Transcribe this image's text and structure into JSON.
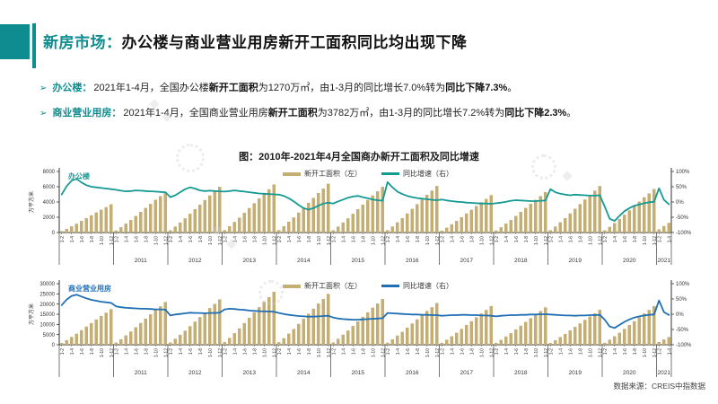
{
  "header": {
    "title_prefix": "新房市场：",
    "title": "办公楼与商业营业用房新开工面积同比均出现下降"
  },
  "bullets": [
    {
      "marker": "➢",
      "label": "办公楼：",
      "text1": "2021年1-4月，全国办公楼",
      "bold1": "新开工面积",
      "text2": "为1270万㎡，由1-3月的同比增长7.0%转为",
      "bold2": "同比下降7.3%",
      "tail": "。"
    },
    {
      "marker": "➢",
      "label": "商业营业用房：",
      "text1": "2021年1-4月，全国商业营业用房",
      "bold1": "新开工面积",
      "text2": "为3782万㎡，由1-3月的同比增长7.2%转为",
      "bold2": "同比下降2.3%",
      "tail": "。"
    }
  ],
  "figure_title": "图：2010年-2021年4月全国商办新开工面积及同比增速",
  "source": "数据来源：CREIS中指数据",
  "chart_data": [
    {
      "type": "bar+line",
      "name": "办公楼",
      "name_color": "#159a93",
      "bar_color": "#c4ae73",
      "line_color": "#159a93",
      "ylabel_left": "万平方米",
      "yticks_left": [
        0,
        2000,
        4000,
        6000,
        8000
      ],
      "yticks_right": [
        "100%",
        "50%",
        "0%",
        "-50%",
        "-100%"
      ],
      "legend": [
        "新开工面积（左）",
        "同比增速（右）"
      ],
      "month_ticks": [
        "1-2",
        "1-4",
        "1-6",
        "1-8",
        "1-10",
        "1-12"
      ],
      "years": [
        {
          "label": "",
          "bars": [
            190,
            480,
            810,
            1150,
            1520,
            1890,
            2260,
            2630,
            3000,
            3330,
            3700
          ],
          "line": [
            25,
            52,
            70,
            76,
            64,
            55,
            50,
            48,
            46,
            44,
            42
          ]
        },
        {
          "label": "2011",
          "bars": [
            270,
            690,
            1170,
            1640,
            2170,
            2700,
            3230,
            3760,
            4290,
            4770,
            5300
          ],
          "line": [
            40,
            37,
            35,
            36,
            38,
            37,
            36,
            35,
            34,
            33,
            32
          ]
        },
        {
          "label": "2012",
          "bars": [
            300,
            780,
            1320,
            1860,
            2460,
            3060,
            3660,
            4260,
            4860,
            5400,
            6000
          ],
          "line": [
            16,
            22,
            32,
            42,
            48,
            44,
            38,
            36,
            37,
            36,
            35
          ]
        },
        {
          "label": "2013",
          "bars": [
            320,
            820,
            1390,
            1950,
            2580,
            3210,
            3840,
            4470,
            5100,
            5670,
            6300
          ],
          "line": [
            34,
            36,
            38,
            36,
            34,
            32,
            30,
            28,
            27,
            26,
            25
          ]
        },
        {
          "label": "2014",
          "bars": [
            320,
            830,
            1410,
            1980,
            2620,
            3260,
            3900,
            4540,
            5180,
            5760,
            6400
          ],
          "line": [
            24,
            20,
            12,
            2,
            -10,
            -20,
            -25,
            -20,
            -12,
            -5,
            -2
          ]
        },
        {
          "label": "2015",
          "bars": [
            300,
            780,
            1320,
            1860,
            2460,
            3060,
            3660,
            4260,
            4860,
            5400,
            6000
          ],
          "line": [
            -5,
            2,
            8,
            14,
            18,
            20,
            16,
            12,
            8,
            6,
            4
          ]
        },
        {
          "label": "2016",
          "bars": [
            310,
            790,
            1340,
            1890,
            2500,
            3110,
            3720,
            4330,
            4940,
            5490,
            6100
          ],
          "line": [
            65,
            48,
            34,
            26,
            20,
            16,
            13,
            11,
            9,
            7,
            6
          ]
        },
        {
          "label": "2017",
          "bars": [
            250,
            640,
            1080,
            1520,
            2010,
            2500,
            2990,
            3480,
            3970,
            4410,
            4900
          ],
          "line": [
            8,
            5,
            3,
            1,
            0,
            -2,
            -3,
            -4,
            -5,
            -5,
            -6
          ]
        },
        {
          "label": "2018",
          "bars": [
            270,
            690,
            1170,
            1640,
            2170,
            2700,
            3230,
            3760,
            4290,
            4770,
            5300
          ],
          "line": [
            -4,
            -2,
            1,
            4,
            6,
            5,
            4,
            3,
            3,
            4,
            5
          ]
        },
        {
          "label": "2019",
          "bars": [
            310,
            790,
            1340,
            1890,
            2500,
            3110,
            3720,
            4330,
            4940,
            5490,
            6100
          ],
          "line": [
            42,
            32,
            27,
            24,
            22,
            24,
            23,
            22,
            21,
            21,
            22
          ]
        },
        {
          "label": "2020",
          "bars": [
            290,
            740,
            1250,
            1770,
            2340,
            2910,
            3480,
            4050,
            4620,
            5130,
            5700
          ],
          "line": [
            -15,
            -55,
            -62,
            -45,
            -30,
            -20,
            -12,
            -8,
            -4,
            -1,
            1
          ]
        },
        {
          "label": "2021",
          "bars": [
            420,
            850,
            1270
          ],
          "line": [
            45,
            7,
            -7.3
          ]
        }
      ]
    },
    {
      "type": "bar+line",
      "name": "商业营业用房",
      "name_color": "#1f6fb5",
      "bar_color": "#c4ae73",
      "line_color": "#1f6fb5",
      "ylabel_left": "万平方米",
      "yticks_left": [
        0,
        5000,
        10000,
        15000,
        20000,
        25000,
        30000
      ],
      "yticks_right": [
        "100%",
        "50%",
        "0%",
        "-50%",
        "-100%"
      ],
      "legend": [
        "新开工面积（左）",
        "同比增速（右）"
      ],
      "month_ticks": [
        "1-2",
        "1-4",
        "1-6",
        "1-8",
        "1-10",
        "1-12"
      ],
      "years": [
        {
          "label": "",
          "bars": [
            880,
            2280,
            3850,
            5430,
            7180,
            8930,
            10680,
            12430,
            14180,
            15750,
            17500
          ],
          "line": [
            30,
            48,
            60,
            64,
            58,
            52,
            47,
            44,
            41,
            39,
            37
          ]
        },
        {
          "label": "2011",
          "bars": [
            1050,
            2730,
            4620,
            6510,
            8610,
            10710,
            12810,
            14910,
            17010,
            18900,
            21000
          ],
          "line": [
            26,
            23,
            21,
            20,
            19,
            18,
            18,
            17,
            16,
            16,
            15
          ]
        },
        {
          "label": "2012",
          "bars": [
            1120,
            2900,
            4910,
            6910,
            9140,
            11370,
            13600,
            15830,
            18060,
            20070,
            22300
          ],
          "line": [
            -4,
            -1,
            1,
            3,
            5,
            4,
            4,
            3,
            4,
            4,
            5
          ]
        },
        {
          "label": "2013",
          "bars": [
            1300,
            3380,
            5720,
            8060,
            10660,
            13260,
            15860,
            18460,
            21060,
            23400,
            26000
          ],
          "line": [
            16,
            18,
            17,
            15,
            14,
            12,
            11,
            10,
            9,
            9,
            8
          ]
        },
        {
          "label": "2014",
          "bars": [
            1250,
            3250,
            5500,
            7750,
            10250,
            12750,
            15250,
            17750,
            20250,
            22500,
            25000
          ],
          "line": [
            4,
            1,
            -2,
            -4,
            -6,
            -7,
            -8,
            -8,
            -7,
            -6,
            -5
          ]
        },
        {
          "label": "2015",
          "bars": [
            1130,
            2930,
            4950,
            6980,
            9230,
            11480,
            13730,
            15980,
            18230,
            20250,
            22500
          ],
          "line": [
            -11,
            -14,
            -16,
            -17,
            -18,
            -18,
            -17,
            -16,
            -15,
            -14,
            -13
          ]
        },
        {
          "label": "2016",
          "bars": [
            1030,
            2670,
            4510,
            6360,
            8410,
            10460,
            12510,
            14560,
            16610,
            18450,
            20500
          ],
          "line": [
            4,
            3,
            2,
            1,
            0,
            -1,
            -1,
            -2,
            -2,
            -3,
            -3
          ]
        },
        {
          "label": "2017",
          "bars": [
            950,
            2470,
            4180,
            5890,
            7790,
            9690,
            11590,
            13490,
            15390,
            17100,
            19000
          ],
          "line": [
            -5,
            -4,
            -3,
            -3,
            -2,
            -2,
            -3,
            -3,
            -4,
            -4,
            -5
          ]
        },
        {
          "label": "2018",
          "bars": [
            920,
            2390,
            4050,
            5700,
            7540,
            9380,
            11220,
            13060,
            14900,
            16560,
            18400
          ],
          "line": [
            -7,
            -5,
            -4,
            -3,
            -3,
            -2,
            -2,
            -1,
            -1,
            0,
            0
          ]
        },
        {
          "label": "2019",
          "bars": [
            860,
            2240,
            3780,
            5330,
            7050,
            8770,
            10490,
            12210,
            13930,
            15480,
            17200
          ],
          "line": [
            -1,
            -2,
            -3,
            -4,
            -4,
            -5,
            -4,
            -4,
            -3,
            -3,
            -2
          ]
        },
        {
          "label": "2020",
          "bars": [
            950,
            2470,
            4180,
            5890,
            7790,
            9690,
            11590,
            13490,
            15390,
            17100,
            19000
          ],
          "line": [
            -18,
            -40,
            -45,
            -35,
            -25,
            -17,
            -11,
            -7,
            -4,
            -2,
            -1
          ]
        },
        {
          "label": "2021",
          "bars": [
            1300,
            2600,
            3782
          ],
          "line": [
            45,
            7.2,
            -2.3
          ]
        }
      ]
    }
  ]
}
